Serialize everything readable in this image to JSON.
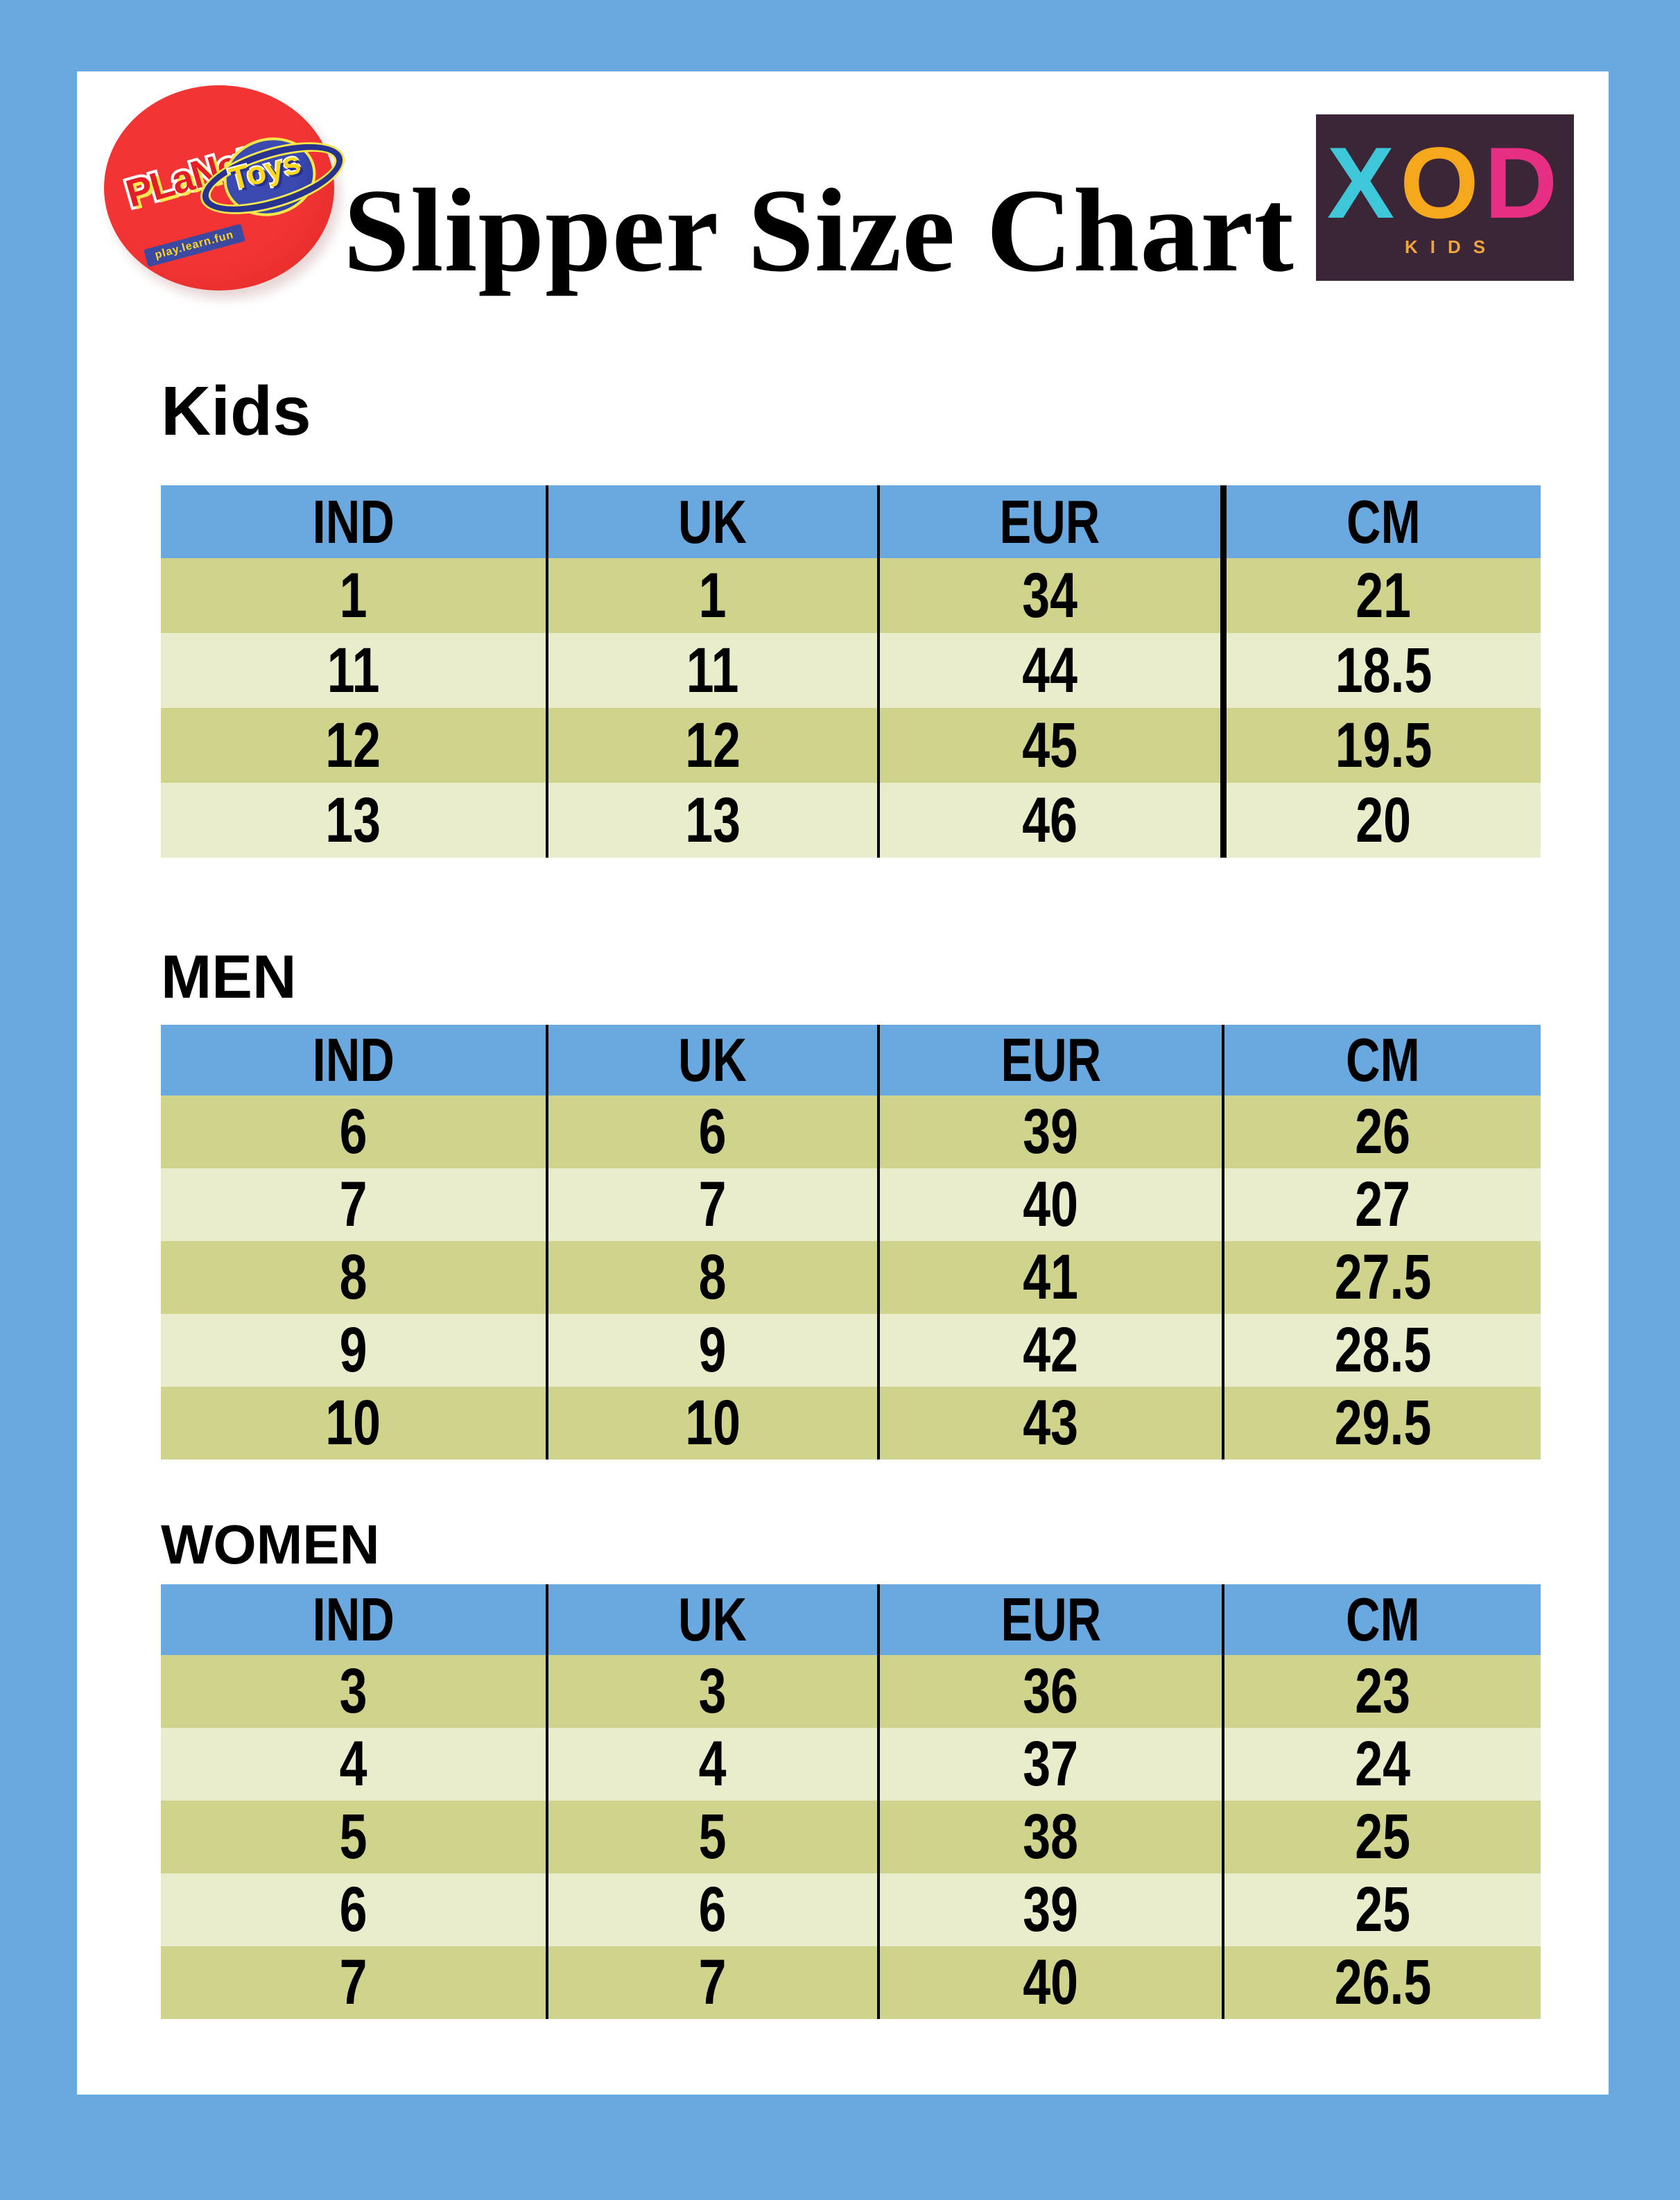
{
  "header": {
    "title": "Slipper Size Chart",
    "brand": {
      "word1": "PLaNet",
      "word2": "of",
      "word3": "Toys",
      "tagline": "play.learn.fun"
    },
    "xod": {
      "x": "X",
      "o": "O",
      "d": "D",
      "sub": "KIDS"
    }
  },
  "colors": {
    "frame_blue": "#69a9e0",
    "header_blue": "#69a9e0",
    "row_dark": "#cfd38c",
    "row_light": "#eaedcb",
    "xod_bg": "#3b2638",
    "xod_x": "#3ec6d9",
    "xod_o": "#f5a81c",
    "xod_d": "#e62e82",
    "pot_red": "#e02828"
  },
  "sections": [
    {
      "heading": "Kids",
      "columns": [
        "IND",
        "UK",
        "EUR",
        "CM"
      ],
      "rows": [
        [
          "1",
          "1",
          "34",
          "21"
        ],
        [
          "11",
          "11",
          "44",
          "18.5"
        ],
        [
          "12",
          "12",
          "45",
          "19.5"
        ],
        [
          "13",
          "13",
          "46",
          "20"
        ]
      ]
    },
    {
      "heading": "MEN",
      "columns": [
        "IND",
        "UK",
        "EUR",
        "CM"
      ],
      "rows": [
        [
          "6",
          "6",
          "39",
          "26"
        ],
        [
          "7",
          "7",
          "40",
          "27"
        ],
        [
          "8",
          "8",
          "41",
          "27.5"
        ],
        [
          "9",
          "9",
          "42",
          "28.5"
        ],
        [
          "10",
          "10",
          "43",
          "29.5"
        ]
      ]
    },
    {
      "heading": "WOMEN",
      "columns": [
        "IND",
        "UK",
        "EUR",
        "CM"
      ],
      "rows": [
        [
          "3",
          "3",
          "36",
          "23"
        ],
        [
          "4",
          "4",
          "37",
          "24"
        ],
        [
          "5",
          "5",
          "38",
          "25"
        ],
        [
          "6",
          "6",
          "39",
          "25"
        ],
        [
          "7",
          "7",
          "40",
          "26.5"
        ]
      ]
    }
  ]
}
